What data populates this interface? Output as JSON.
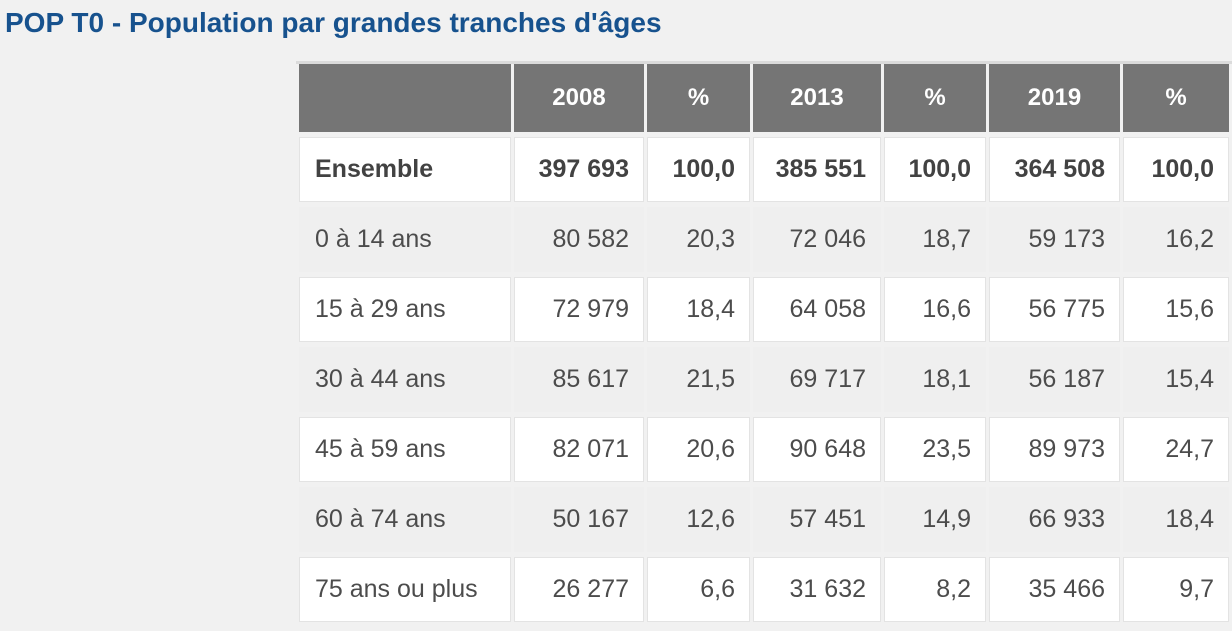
{
  "page": {
    "background": "#f1f1f1",
    "title": "POP T0 - Population par grandes tranches d'âges",
    "title_color": "#17528e"
  },
  "table_style": {
    "header_bg": "#757575",
    "header_text_color": "#ffffff",
    "row_bg_white": "#ffffff",
    "row_bg_alt": "#efefef",
    "body_text_color": "#4c4c4c",
    "cell_border_color": "#e3e3e3"
  },
  "chart_data": {
    "type": "table",
    "title": "POP T0 - Population par grandes tranches d'âges",
    "columns": [
      "",
      "2008",
      "%",
      "2013",
      "%",
      "2019",
      "%"
    ],
    "rows": [
      [
        "Ensemble",
        "397 693",
        "100,0",
        "385 551",
        "100,0",
        "364 508",
        "100,0"
      ],
      [
        "0 à 14 ans",
        "80 582",
        "20,3",
        "72 046",
        "18,7",
        "59 173",
        "16,2"
      ],
      [
        "15 à 29 ans",
        "72 979",
        "18,4",
        "64 058",
        "16,6",
        "56 775",
        "15,6"
      ],
      [
        "30 à 44 ans",
        "85 617",
        "21,5",
        "69 717",
        "18,1",
        "56 187",
        "15,4"
      ],
      [
        "45 à 59 ans",
        "82 071",
        "20,6",
        "90 648",
        "23,5",
        "89 973",
        "24,7"
      ],
      [
        "60 à 74 ans",
        "50 167",
        "12,6",
        "57 451",
        "14,9",
        "66 933",
        "18,4"
      ],
      [
        "75 ans ou plus",
        "26 277",
        "6,6",
        "31 632",
        "8,2",
        "35 466",
        "9,7"
      ]
    ],
    "total_row_index": 0
  }
}
